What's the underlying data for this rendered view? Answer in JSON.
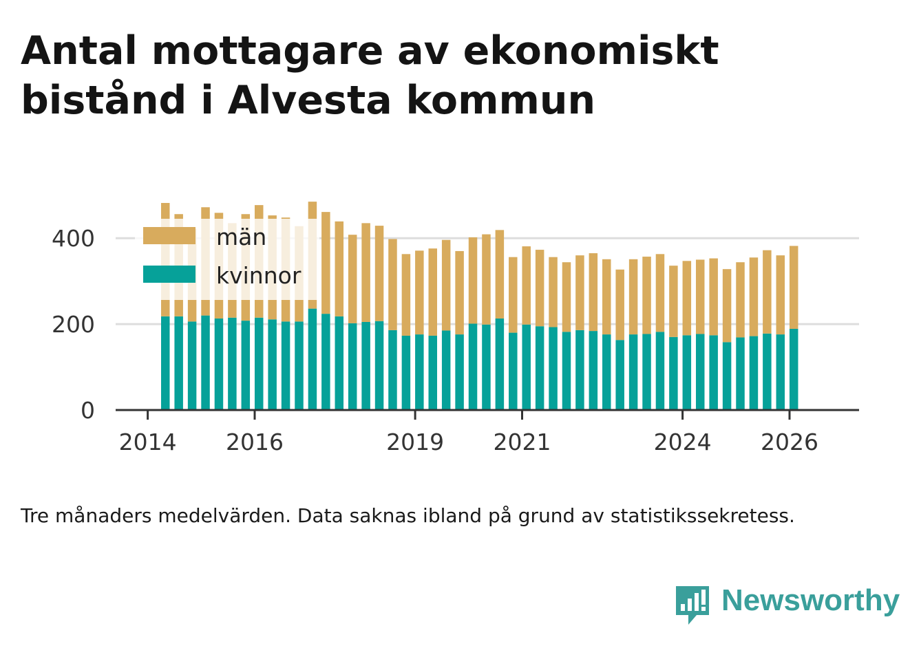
{
  "chart_data": {
    "type": "bar",
    "stacked": true,
    "title": "Antal mottagare av ekonomiskt bistånd i Alvesta kommun",
    "footnote": "Tre månaders medelvärden. Data saknas ibland på grund av statistikssekretess.",
    "x_ticks": [
      "2014",
      "2016",
      "2019",
      "2021",
      "2024",
      "2026"
    ],
    "x_tick_positions": [
      2014.0,
      2016.0,
      2019.0,
      2021.0,
      2024.0,
      2026.0
    ],
    "y_ticks": [
      "0",
      "200",
      "400"
    ],
    "y_tick_values": [
      0,
      200,
      400
    ],
    "ylim": [
      0,
      490
    ],
    "xlim": [
      2013.4,
      2027.3
    ],
    "legend": {
      "placement": "top-left",
      "entries": [
        "män",
        "kvinnor"
      ]
    },
    "colors": {
      "män": "#d8ab5d",
      "kvinnor": "#06a199",
      "axis": "#333333",
      "grid": "#dddddd"
    },
    "x": [
      2014.33,
      2014.58,
      2014.83,
      2015.08,
      2015.33,
      2015.58,
      2015.83,
      2016.08,
      2016.33,
      2016.58,
      2016.83,
      2017.08,
      2017.33,
      2017.58,
      2017.83,
      2018.08,
      2018.33,
      2018.58,
      2018.83,
      2019.08,
      2019.33,
      2019.58,
      2019.83,
      2020.08,
      2020.33,
      2020.58,
      2020.83,
      2021.08,
      2021.33,
      2021.58,
      2021.83,
      2022.08,
      2022.33,
      2022.58,
      2022.83,
      2023.08,
      2023.33,
      2023.58,
      2023.83,
      2024.08,
      2024.33,
      2024.58,
      2024.83,
      2025.08,
      2025.33,
      2025.58,
      2025.83,
      2026.08
    ],
    "series": [
      {
        "name": "kvinnor",
        "values": [
          218,
          218,
          206,
          220,
          213,
          215,
          208,
          215,
          211,
          206,
          206,
          236,
          224,
          218,
          202,
          205,
          207,
          186,
          173,
          176,
          173,
          185,
          176,
          201,
          199,
          213,
          180,
          199,
          195,
          193,
          182,
          186,
          184,
          176,
          163,
          176,
          177,
          182,
          170,
          174,
          177,
          174,
          158,
          169,
          172,
          178,
          176,
          189
        ]
      },
      {
        "name": "män",
        "values": [
          264,
          238,
          216,
          252,
          246,
          220,
          248,
          262,
          242,
          242,
          222,
          249,
          237,
          221,
          206,
          230,
          222,
          212,
          190,
          195,
          203,
          211,
          194,
          201,
          210,
          206,
          176,
          182,
          178,
          163,
          162,
          174,
          181,
          175,
          164,
          175,
          180,
          181,
          166,
          173,
          173,
          179,
          170,
          175,
          183,
          194,
          184,
          193
        ]
      }
    ]
  },
  "brand": {
    "name": "Newsworthy"
  }
}
